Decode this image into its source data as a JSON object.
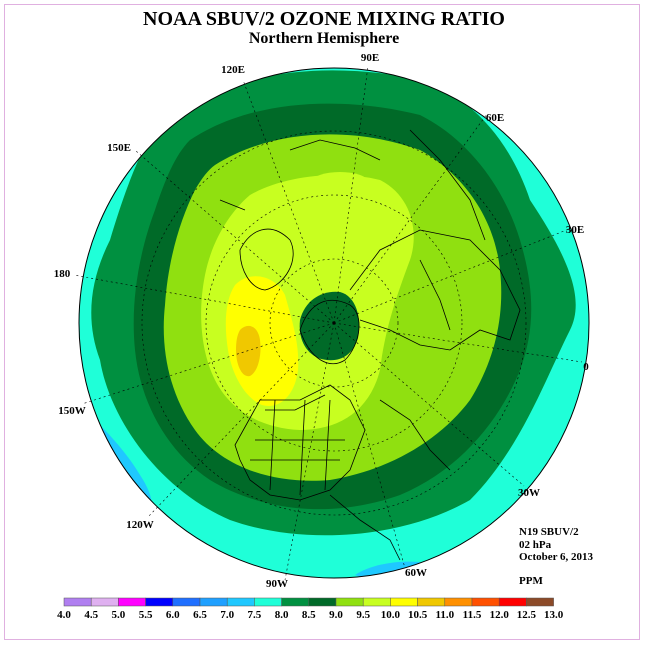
{
  "title": "NOAA SBUV/2 OZONE MIXING RATIO",
  "subtitle": "Northern Hemisphere",
  "longitude_labels": {
    "lon_90e": "90E",
    "lon_60e": "60E",
    "lon_30e": "30E",
    "lon_0": "0",
    "lon_30w": "30W",
    "lon_60w": "60W",
    "lon_90w": "90W",
    "lon_120w": "120W",
    "lon_150w": "150W",
    "lon_180": "180",
    "lon_150e": "150E",
    "lon_120e": "120E"
  },
  "info": {
    "instrument": "N19 SBUV/2",
    "pressure_level": "02 hPa",
    "date": "October 6, 2013",
    "units": "PPM"
  },
  "colorbar": {
    "colors": [
      "#b07ff0",
      "#dfb0f0",
      "#ff00ff",
      "#0000ff",
      "#1f6fff",
      "#1fa0ff",
      "#1fc8ff",
      "#1fffd8",
      "#009040",
      "#006a28",
      "#90e010",
      "#c8ff20",
      "#ffff00",
      "#f0c800",
      "#ff9000",
      "#ff5000",
      "#ff0000",
      "#8c4a28"
    ],
    "labels": [
      "4.0",
      "4.5",
      "5.0",
      "5.5",
      "6.0",
      "6.5",
      "7.0",
      "7.5",
      "8.0",
      "8.5",
      "9.0",
      "9.5",
      "10.0",
      "10.5",
      "11.0",
      "11.5",
      "12.0",
      "12.5",
      "13.0"
    ]
  }
}
